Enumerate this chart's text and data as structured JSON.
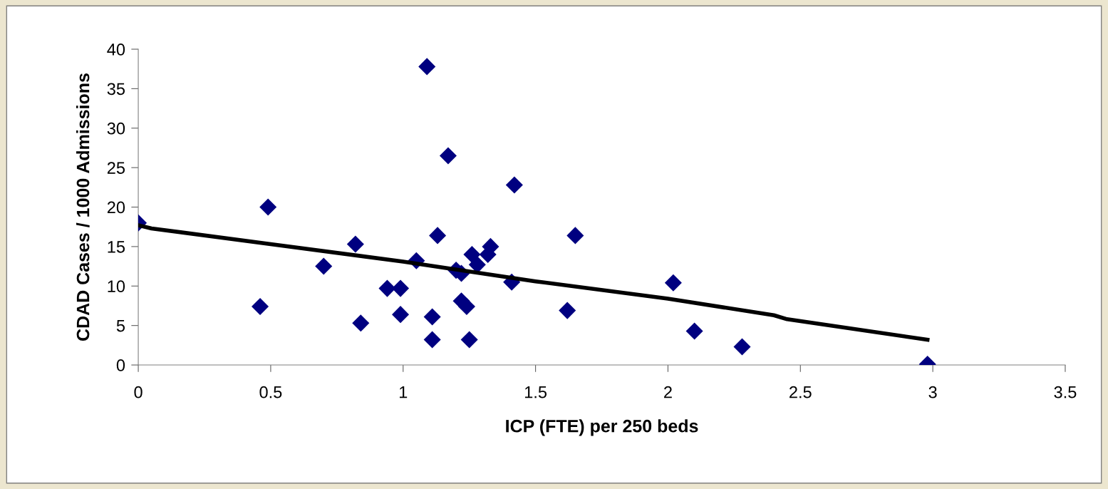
{
  "chart_data": {
    "type": "scatter",
    "xlabel": "ICP (FTE) per 250 beds",
    "ylabel": "CDAD Cases / 1000 Admissions",
    "xlim": [
      0,
      3.5
    ],
    "xticks": [
      0,
      0.5,
      1,
      1.5,
      2,
      2.5,
      3,
      3.5
    ],
    "ylim": [
      0,
      40
    ],
    "yticks": [
      0,
      5,
      10,
      15,
      20,
      25,
      30,
      35,
      40
    ],
    "grid": false,
    "legend": false,
    "marker": "diamond",
    "series": [
      {
        "type": "scatter",
        "color": "#000080",
        "x": [
          0,
          0.49,
          0.46,
          0.7,
          0.82,
          0.84,
          0.94,
          0.99,
          0.99,
          1.05,
          1.09,
          1.11,
          1.11,
          1.17,
          1.13,
          1.2,
          1.22,
          1.22,
          1.24,
          1.25,
          1.26,
          1.28,
          1.32,
          1.33,
          1.41,
          1.42,
          1.62,
          1.65,
          2.02,
          2.1,
          2.28,
          2.98
        ],
        "values": [
          18.0,
          20.0,
          7.4,
          12.5,
          15.3,
          5.3,
          9.7,
          9.7,
          6.4,
          13.2,
          37.8,
          3.2,
          6.1,
          26.5,
          16.4,
          12.0,
          11.6,
          8.1,
          7.4,
          3.2,
          14.0,
          12.7,
          14.0,
          15.0,
          10.5,
          22.8,
          6.9,
          16.4,
          10.4,
          4.3,
          2.3,
          0.1
        ]
      },
      {
        "type": "line",
        "color": "#000000",
        "marker": "none",
        "line_style": "solid",
        "x": [
          0,
          0.05,
          0.5,
          1,
          1.5,
          2,
          2.4,
          2.45,
          2.98
        ],
        "values": [
          17.7,
          17.3,
          15.3,
          13.1,
          10.6,
          8.4,
          6.3,
          5.8,
          3.2
        ]
      }
    ]
  }
}
